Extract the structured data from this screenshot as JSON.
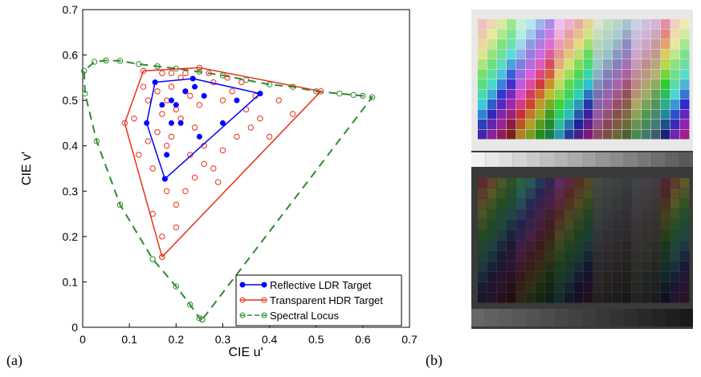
{
  "chart_data": {
    "type": "scatter",
    "xlabel": "CIE u'",
    "ylabel": "CIE v'",
    "xlim": [
      0,
      0.7
    ],
    "ylim": [
      0,
      0.7
    ],
    "xticks": [
      0,
      0.1,
      0.2,
      0.3,
      0.4,
      0.5,
      0.6,
      0.7
    ],
    "yticks": [
      0,
      0.1,
      0.2,
      0.3,
      0.4,
      0.5,
      0.6,
      0.7
    ],
    "legend": "lower right",
    "series": [
      {
        "name": "Reflective LDR Target",
        "color": "#0000ff",
        "dash": false,
        "marker": "filled",
        "x": [
          0.176,
          0.137,
          0.155,
          0.236,
          0.38,
          0.176
        ],
        "values": [
          0.327,
          0.45,
          0.54,
          0.548,
          0.515,
          0.327
        ],
        "points_x": [
          0.19,
          0.21,
          0.18,
          0.25,
          0.3,
          0.2,
          0.26,
          0.33,
          0.24,
          0.17,
          0.22,
          0.19
        ],
        "points_y": [
          0.45,
          0.45,
          0.38,
          0.42,
          0.45,
          0.49,
          0.51,
          0.5,
          0.53,
          0.49,
          0.52,
          0.5
        ]
      },
      {
        "name": "Transparent HDR Target",
        "color": "#e8301c",
        "dash": false,
        "marker": "open",
        "x": [
          0.17,
          0.09,
          0.13,
          0.25,
          0.51,
          0.17
        ],
        "values": [
          0.155,
          0.45,
          0.565,
          0.572,
          0.52,
          0.155
        ],
        "points_x": [
          0.18,
          0.2,
          0.22,
          0.19,
          0.21,
          0.23,
          0.17,
          0.25,
          0.28,
          0.3,
          0.32,
          0.35,
          0.38,
          0.42,
          0.45,
          0.16,
          0.14,
          0.12,
          0.15,
          0.18,
          0.2,
          0.24,
          0.26,
          0.29,
          0.33,
          0.36,
          0.4,
          0.13,
          0.11,
          0.17,
          0.19,
          0.22,
          0.27,
          0.31,
          0.34,
          0.16,
          0.21,
          0.24,
          0.18,
          0.23,
          0.15,
          0.2,
          0.28,
          0.26,
          0.14,
          0.37,
          0.3,
          0.22,
          0.17,
          0.19
        ],
        "points_y": [
          0.5,
          0.48,
          0.52,
          0.53,
          0.55,
          0.51,
          0.47,
          0.49,
          0.54,
          0.5,
          0.52,
          0.48,
          0.46,
          0.5,
          0.47,
          0.43,
          0.41,
          0.38,
          0.35,
          0.3,
          0.27,
          0.33,
          0.36,
          0.32,
          0.42,
          0.44,
          0.42,
          0.53,
          0.46,
          0.56,
          0.56,
          0.56,
          0.56,
          0.55,
          0.54,
          0.52,
          0.46,
          0.44,
          0.4,
          0.38,
          0.25,
          0.22,
          0.35,
          0.4,
          0.5,
          0.51,
          0.39,
          0.3,
          0.2,
          0.42
        ]
      },
      {
        "name": "Spectral Locus",
        "color": "#2e8b2e",
        "dash": true,
        "marker": "open",
        "x": [
          0.256,
          0.25,
          0.23,
          0.2,
          0.15,
          0.08,
          0.03,
          0.005,
          0.003,
          0.025,
          0.05,
          0.08,
          0.12,
          0.16,
          0.2,
          0.25,
          0.3,
          0.35,
          0.4,
          0.45,
          0.5,
          0.55,
          0.58,
          0.6,
          0.62,
          0.256
        ],
        "values": [
          0.017,
          0.02,
          0.05,
          0.09,
          0.15,
          0.27,
          0.41,
          0.515,
          0.565,
          0.585,
          0.588,
          0.587,
          0.58,
          0.575,
          0.57,
          0.563,
          0.555,
          0.545,
          0.535,
          0.53,
          0.52,
          0.515,
          0.512,
          0.51,
          0.507,
          0.017
        ],
        "points_x": [],
        "points_y": []
      }
    ]
  },
  "panels": {
    "a": "(a)",
    "b": "(b)"
  }
}
